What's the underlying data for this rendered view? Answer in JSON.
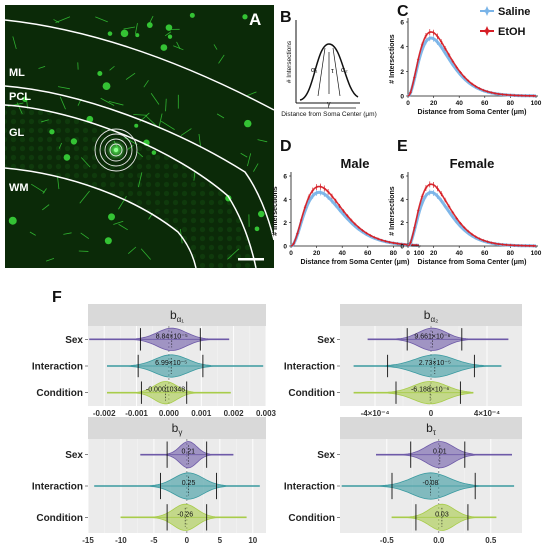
{
  "panelA": {
    "letter": "A",
    "layers": [
      {
        "id": "ml",
        "label": "ML"
      },
      {
        "id": "pcl",
        "label": "PCL"
      },
      {
        "id": "gl",
        "label": "GL"
      },
      {
        "id": "wm",
        "label": "WM"
      }
    ],
    "colors": {
      "background": "#0b2a08",
      "fluorescence": "#39d43a",
      "boundary": "#ffffff"
    }
  },
  "panelB": {
    "letter": "B",
    "ylabel": "# Intersections",
    "xlabel": "Distance from Soma Center (μm)",
    "params": {
      "a1": "α₁",
      "a2": "α₂",
      "tau": "τ",
      "gamma": "γ"
    }
  },
  "sholl_legend": [
    {
      "name": "Saline",
      "color": "#7ab4e8"
    },
    {
      "name": "EtOH",
      "color": "#d61f26"
    }
  ],
  "shollPanels": [
    {
      "id": "C",
      "letter": "C",
      "title": "",
      "xlabel": "Distance from Soma Center (μm)",
      "ylabel": "# Intersections",
      "xticks": [
        "0",
        "20",
        "40",
        "60",
        "80",
        "100"
      ],
      "yticks": [
        "0",
        "2",
        "4",
        "6"
      ],
      "chart_data": {
        "type": "line",
        "xlim": [
          0,
          100
        ],
        "ylim": [
          0,
          6
        ],
        "series": [
          {
            "name": "Saline",
            "peak_x": 18,
            "peak_y": 4.7
          },
          {
            "name": "EtOH",
            "peak_x": 18,
            "peak_y": 5.2
          }
        ]
      }
    },
    {
      "id": "D",
      "letter": "D",
      "title": "Male",
      "xlabel": "Distance from Soma Center (μm)",
      "ylabel": "# Intersections",
      "xticks": [
        "0",
        "20",
        "40",
        "60",
        "80",
        "100"
      ],
      "yticks": [
        "0",
        "2",
        "4",
        "6"
      ],
      "chart_data": {
        "type": "line",
        "xlim": [
          0,
          100
        ],
        "ylim": [
          0,
          6
        ],
        "series": [
          {
            "name": "Saline",
            "peak_x": 22,
            "peak_y": 4.6
          },
          {
            "name": "EtOH",
            "peak_x": 22,
            "peak_y": 5.1
          }
        ]
      }
    },
    {
      "id": "E",
      "letter": "E",
      "title": "Female",
      "xlabel": "Distance from Soma Center (μm)",
      "ylabel": "# Intersections",
      "xticks": [
        "0",
        "20",
        "40",
        "60",
        "80",
        "100"
      ],
      "yticks": [
        "0",
        "2",
        "4",
        "6"
      ],
      "chart_data": {
        "type": "line",
        "xlim": [
          0,
          100
        ],
        "ylim": [
          0,
          6
        ],
        "series": [
          {
            "name": "Saline",
            "peak_x": 18,
            "peak_y": 4.6
          },
          {
            "name": "EtOH",
            "peak_x": 18,
            "peak_y": 5.3
          }
        ]
      }
    }
  ],
  "panelF": {
    "letter": "F",
    "categories": [
      "Sex",
      "Interaction",
      "Condition"
    ],
    "category_colors": [
      "#6e5aa8",
      "#3a9aa0",
      "#a8cc4a"
    ],
    "chart_data": [
      {
        "type": "violin",
        "title_base": "b",
        "title_sub": "α₁",
        "xlim": [
          -0.0025,
          0.003
        ],
        "xticks": [
          {
            "v": -0.002,
            "t": "-0.002"
          },
          {
            "v": -0.001,
            "t": "-0.001"
          },
          {
            "v": 0,
            "t": "0.000"
          },
          {
            "v": 0.001,
            "t": "0.001"
          },
          {
            "v": 0.002,
            "t": "0.002"
          },
          {
            "v": 0.003,
            "t": "0.003"
          }
        ],
        "rows": [
          {
            "category": "Sex",
            "mean": 8.84e-05,
            "label": "8.84×10⁻⁵",
            "ci": [
              -0.00088,
              0.00097
            ],
            "range": [
              -0.00245,
              0.00185
            ],
            "sd": 0.00045
          },
          {
            "category": "Interaction",
            "mean": 6.99e-05,
            "label": "6.99×10⁻⁵",
            "ci": [
              -0.00095,
              0.00105
            ],
            "range": [
              -0.0019,
              0.0029
            ],
            "sd": 0.0005
          },
          {
            "category": "Condition",
            "mean": -0.00010348,
            "label": "-0.00010348",
            "ci": [
              -0.00085,
              0.00055
            ],
            "range": [
              -0.0019,
              0.0019
            ],
            "sd": 0.00035
          }
        ]
      },
      {
        "type": "violin",
        "title_base": "b",
        "title_sub": "α₂",
        "xlim": [
          -0.00065,
          0.00065
        ],
        "xticks": [
          {
            "v": -0.0004,
            "t": "-4×10⁻⁴"
          },
          {
            "v": 0,
            "t": "0"
          },
          {
            "v": 0.0004,
            "t": "4×10⁻⁴"
          }
        ],
        "rows": [
          {
            "category": "Sex",
            "mean": 9.66e-06,
            "label": "9.661×10⁻⁶",
            "ci": [
              -0.00017,
              0.00022
            ],
            "range": [
              -0.00045,
              0.00055
            ],
            "sd": 0.0001
          },
          {
            "category": "Interaction",
            "mean": 2.73e-05,
            "label": "2.73×10⁻⁵",
            "ci": [
              -0.00031,
              0.00031
            ],
            "range": [
              -0.00055,
              0.0005
            ],
            "sd": 0.00014
          },
          {
            "category": "Condition",
            "mean": -6.19e-06,
            "label": "-6.188×10⁻⁶",
            "ci": [
              -0.00025,
              0.00021
            ],
            "range": [
              -0.00055,
              0.0003
            ],
            "sd": 0.00012
          }
        ]
      },
      {
        "type": "violin",
        "title_base": "b",
        "title_sub": "γ",
        "xlim": [
          -15,
          12
        ],
        "xticks": [
          {
            "v": -15,
            "t": "-15"
          },
          {
            "v": -10,
            "t": "-10"
          },
          {
            "v": -5,
            "t": "-5"
          },
          {
            "v": 0,
            "t": "0"
          },
          {
            "v": 5,
            "t": "5"
          },
          {
            "v": 10,
            "t": "10"
          }
        ],
        "rows": [
          {
            "category": "Sex",
            "mean": 0.21,
            "label": "0.21",
            "ci": [
              -3,
              3
            ],
            "range": [
              -7,
              7
            ],
            "sd": 1.3
          },
          {
            "category": "Interaction",
            "mean": 0.25,
            "label": "0.25",
            "ci": [
              -4,
              4.5
            ],
            "range": [
              -14,
              11
            ],
            "sd": 2.2
          },
          {
            "category": "Condition",
            "mean": -0.26,
            "label": "-0.26",
            "ci": [
              -3,
              3
            ],
            "range": [
              -10,
              9
            ],
            "sd": 1.8
          }
        ]
      },
      {
        "type": "violin",
        "title_base": "b",
        "title_sub": "τ",
        "xlim": [
          -0.95,
          0.8
        ],
        "xticks": [
          {
            "v": -0.5,
            "t": "-0.5"
          },
          {
            "v": 0,
            "t": "0.0"
          },
          {
            "v": 0.5,
            "t": "0.5"
          }
        ],
        "rows": [
          {
            "category": "Sex",
            "mean": 0.01,
            "label": "0.01",
            "ci": [
              -0.27,
              0.25
            ],
            "range": [
              -0.6,
              0.7
            ],
            "sd": 0.13
          },
          {
            "category": "Interaction",
            "mean": -0.08,
            "label": "-0.08",
            "ci": [
              -0.45,
              0.35
            ],
            "range": [
              -0.93,
              0.72
            ],
            "sd": 0.18
          },
          {
            "category": "Condition",
            "mean": 0.03,
            "label": "0.03",
            "ci": [
              -0.22,
              0.28
            ],
            "range": [
              -0.45,
              0.55
            ],
            "sd": 0.12
          }
        ]
      }
    ]
  }
}
